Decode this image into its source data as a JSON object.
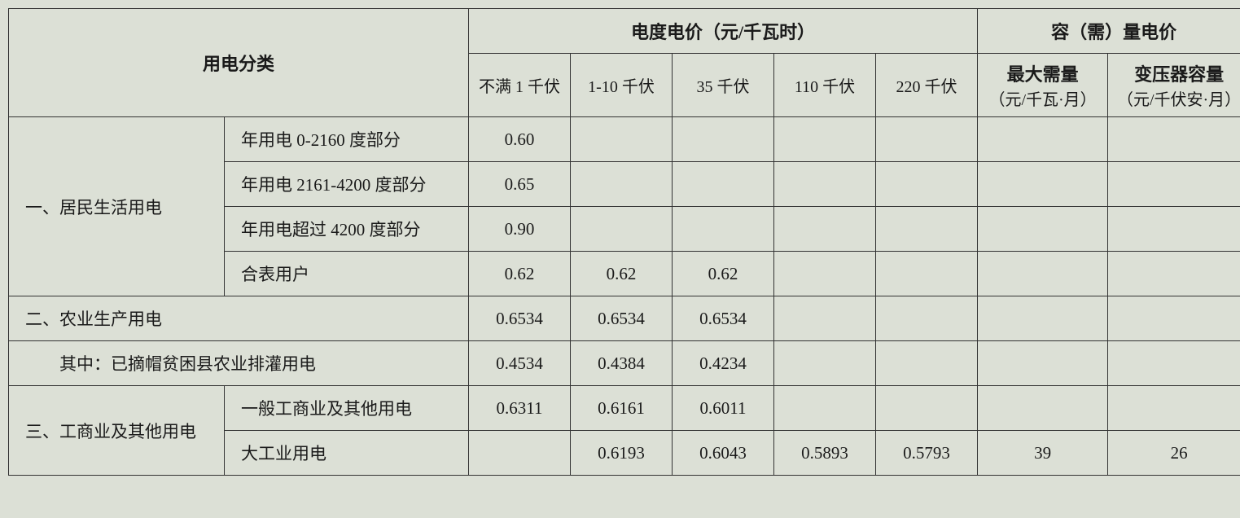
{
  "headers": {
    "category": "用电分类",
    "energy_price_group": "电度电价（元/千瓦时）",
    "capacity_price_group": "容（需）量电价",
    "v1": "不满 1 千伏",
    "v2": "1-10 千伏",
    "v3": "35 千伏",
    "v4": "110 千伏",
    "v5": "220 千伏",
    "demand": "最大需量",
    "demand_unit": "（元/千瓦·月）",
    "transformer": "变压器容量",
    "transformer_unit": "（元/千伏安·月）"
  },
  "rows": {
    "r1": {
      "cat": "一、居民生活用电",
      "sub1": "年用电 0-2160 度部分",
      "sub2": "年用电 2161-4200 度部分",
      "sub3": "年用电超过 4200 度部分",
      "sub4": "合表用户",
      "v_sub1_1": "0.60",
      "v_sub2_1": "0.65",
      "v_sub3_1": "0.90",
      "v_sub4_1": "0.62",
      "v_sub4_2": "0.62",
      "v_sub4_3": "0.62"
    },
    "r2": {
      "cat": "二、农业生产用电",
      "v1": "0.6534",
      "v2": "0.6534",
      "v3": "0.6534"
    },
    "r3": {
      "cat": "　　其中：已摘帽贫困县农业排灌用电",
      "v1": "0.4534",
      "v2": "0.4384",
      "v3": "0.4234"
    },
    "r4": {
      "cat": "三、工商业及其他用电",
      "sub1": "一般工商业及其他用电",
      "sub2": "大工业用电",
      "s1v1": "0.6311",
      "s1v2": "0.6161",
      "s1v3": "0.6011",
      "s2v2": "0.6193",
      "s2v3": "0.6043",
      "s2v4": "0.5893",
      "s2v5": "0.5793",
      "s2d": "39",
      "s2t": "26"
    }
  }
}
